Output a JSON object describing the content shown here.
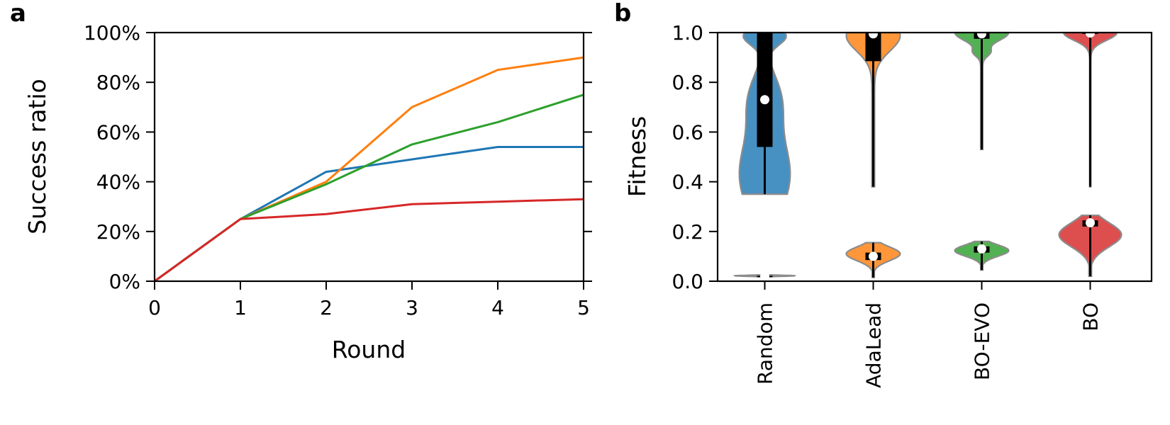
{
  "chart_data": [
    {
      "panel": "a",
      "type": "line",
      "xlabel": "Round",
      "ylabel": "Success ratio",
      "xlim": [
        0,
        5
      ],
      "ylim": [
        0,
        100
      ],
      "x": [
        0,
        1,
        2,
        3,
        4,
        5
      ],
      "x_ticks": [
        "0",
        "1",
        "2",
        "3",
        "4",
        "5"
      ],
      "y_ticks": [
        "0%",
        "20%",
        "40%",
        "60%",
        "80%",
        "100%"
      ],
      "grid": false,
      "series": [
        {
          "color": "#1f77b4",
          "values": [
            0,
            25,
            44,
            49,
            54,
            54
          ]
        },
        {
          "color": "#ff7f0e",
          "values": [
            0,
            25,
            40,
            70,
            85,
            90
          ]
        },
        {
          "color": "#2ca02c",
          "values": [
            0,
            25,
            39,
            55,
            64,
            75
          ]
        },
        {
          "color": "#d62728",
          "values": [
            0,
            25,
            27,
            31,
            32,
            33
          ]
        }
      ]
    },
    {
      "panel": "b",
      "type": "violin",
      "ylabel": "Fitness",
      "ylim": [
        0,
        1
      ],
      "y_ticks": [
        "0.0",
        "0.2",
        "0.4",
        "0.6",
        "0.8",
        "1.0"
      ],
      "categories": [
        "Random",
        "AdaLead",
        "BO-EVO",
        "BO"
      ],
      "grid": false,
      "groups": [
        {
          "name": "Random",
          "color": "#1f77b4",
          "upper": {
            "min": 0.35,
            "q1": 0.54,
            "median": 0.73,
            "q3": 1.0,
            "max": 1.0
          },
          "lower": {
            "min": 0.015,
            "q1": 0.018,
            "median": 0.02,
            "q3": 0.022,
            "max": 0.025
          }
        },
        {
          "name": "AdaLead",
          "color": "#ff7f0e",
          "upper": {
            "min": 0.38,
            "q1": 0.885,
            "median": 0.995,
            "q3": 1.0,
            "max": 1.0
          },
          "lower": {
            "min": 0.015,
            "q1": 0.085,
            "median": 0.1,
            "q3": 0.115,
            "max": 0.155
          }
        },
        {
          "name": "BO-EVO",
          "color": "#2ca02c",
          "upper": {
            "min": 0.53,
            "q1": 0.975,
            "median": 0.995,
            "q3": 1.0,
            "max": 1.0
          },
          "lower": {
            "min": 0.045,
            "q1": 0.115,
            "median": 0.13,
            "q3": 0.14,
            "max": 0.16
          }
        },
        {
          "name": "BO",
          "color": "#d62728",
          "upper": {
            "min": 0.38,
            "q1": 0.995,
            "median": 0.998,
            "q3": 1.0,
            "max": 1.0
          },
          "lower": {
            "min": 0.02,
            "q1": 0.22,
            "median": 0.235,
            "q3": 0.245,
            "max": 0.265
          }
        }
      ]
    }
  ]
}
